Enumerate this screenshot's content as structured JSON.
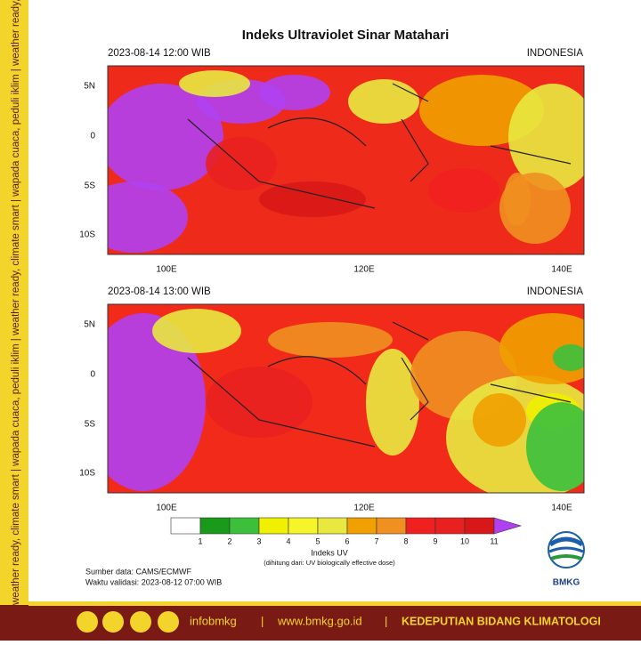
{
  "title": "Indeks Ultraviolet Sinar Matahari",
  "panels": [
    {
      "datetime": "2023-08-14  12:00 WIB",
      "region": "INDONESIA",
      "lat_labels": [
        "5N",
        "0",
        "5S",
        "10S"
      ],
      "lon_labels": [
        "100E",
        "120E",
        "140E"
      ]
    },
    {
      "datetime": "2023-08-14  13:00 WIB",
      "region": "INDONESIA",
      "lat_labels": [
        "5N",
        "0",
        "5S",
        "10S"
      ],
      "lon_labels": [
        "100E",
        "120E",
        "140E"
      ]
    }
  ],
  "colorbar": {
    "label": "Indeks UV",
    "note": "(dihitung dari: UV biologically effective dose)",
    "ticks": [
      1,
      2,
      3,
      4,
      5,
      6,
      7,
      8,
      9,
      10,
      11
    ],
    "colors": [
      "#ffffff",
      "#1a9a1a",
      "#3cc03c",
      "#f0f000",
      "#f5f52a",
      "#e8e840",
      "#f0a000",
      "#f09020",
      "#f02020",
      "#e82020",
      "#d81818",
      "#b040f0"
    ]
  },
  "source": "Sumber data: CAMS/ECMWF",
  "validity": "Waktu validasi: 2023-08-12 07:00 WIB",
  "logo": "BMKG",
  "side_text": "weather ready, climate smart  |  wapada cuaca, peduli iklim  |  weather ready, climate smart  |  wapada cuaca, peduli iklim  |  weather ready, climate smart",
  "footer": {
    "handle": "infobmkg",
    "website": "www.bmkg.go.id",
    "department": "KEDEPUTIAN BIDANG KLIMATOLOGI"
  }
}
